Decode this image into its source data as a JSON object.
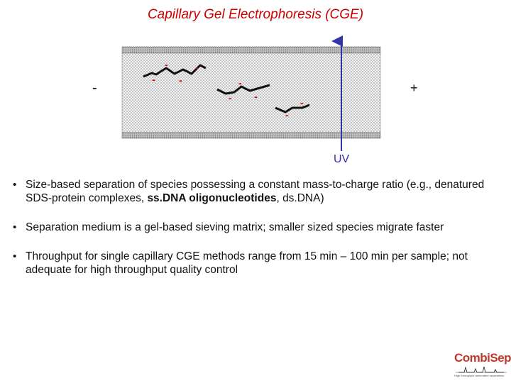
{
  "slide": {
    "title": "Capillary Gel Electrophoresis (CGE)"
  },
  "diagram": {
    "negative_label": "-",
    "positive_label": "+",
    "detector_label": "UV",
    "charge_symbol": "-"
  },
  "bullets": [
    {
      "text_a": "Size-based separation of species possessing a constant mass-to-charge ratio (e.g., denatured SDS-protein complexes, ",
      "text_bold": "ss.DNA oligonucleotides",
      "text_b": ", ds.DNA)"
    },
    {
      "text": "Separation medium is a gel-based sieving matrix; smaller sized species migrate faster"
    },
    {
      "text": "Throughput for single capillary CGE methods range from 15 min – 100 min per sample; not adequate for high throughput quality control"
    }
  ],
  "logo": {
    "name": "CombiSep",
    "tagline": "High throughput automated separations"
  },
  "colors": {
    "title": "#cc0000",
    "arrow": "#3333aa",
    "charge": "#dd0000"
  }
}
